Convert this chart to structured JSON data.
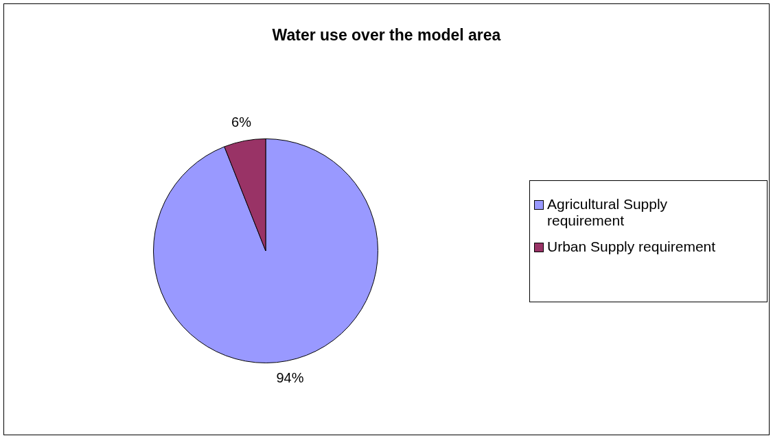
{
  "chart_data": {
    "type": "pie",
    "title": "Water use over the model area",
    "categories": [
      "Agricultural Supply requirement",
      "Urban Supply requirement"
    ],
    "values": [
      94,
      6
    ],
    "colors": [
      "#9999ff",
      "#993366"
    ],
    "value_labels": [
      "94%",
      "6%"
    ],
    "legend": "right"
  }
}
